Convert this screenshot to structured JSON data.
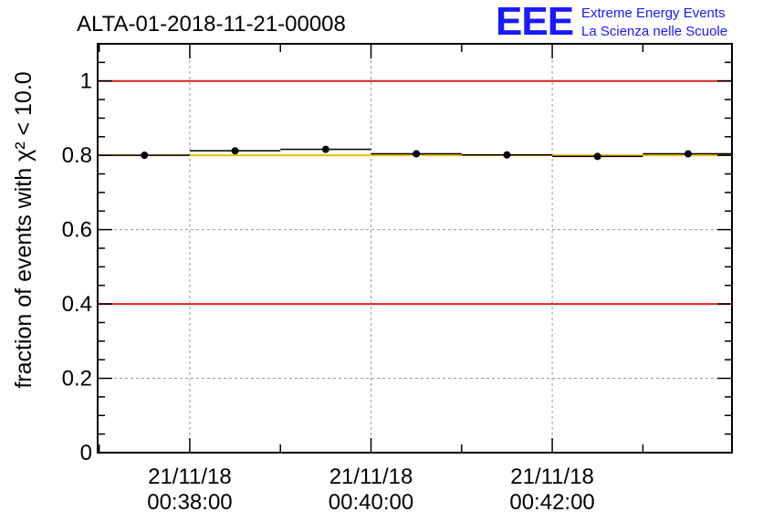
{
  "header": {
    "run_title": "ALTA-01-2018-11-21-00008",
    "logo_text": "EEE",
    "logo_line1": "Extreme Energy Events",
    "logo_line2": "La Scienza nelle Scuole"
  },
  "chart_data": {
    "type": "scatter",
    "title": "ALTA-01-2018-11-21-00008",
    "xlabel": "",
    "ylabel": "fraction of events with χ² < 10.0",
    "ylim": [
      0,
      1.1
    ],
    "xlim": [
      "2018-11-21 00:36:59",
      "2018-11-21 00:43:59"
    ],
    "grid": true,
    "y_ticks": [
      "0",
      "0.2",
      "0.4",
      "0.6",
      "0.8",
      "1"
    ],
    "x_ticks": [
      {
        "date": "21/11/18",
        "time": "00:38:00"
      },
      {
        "date": "21/11/18",
        "time": "00:40:00"
      },
      {
        "date": "21/11/18",
        "time": "00:42:00"
      }
    ],
    "reference_lines": [
      {
        "y": 1.0,
        "color": "#e02020"
      },
      {
        "y": 0.4,
        "color": "#e02020"
      },
      {
        "y": 0.8,
        "color": "#f0c000"
      }
    ],
    "series": [
      {
        "x_start": [
          "00:37:00",
          "00:38:00",
          "00:39:00",
          "00:40:00",
          "00:41:00",
          "00:42:00",
          "00:43:00"
        ],
        "x_end": [
          "00:38:00",
          "00:39:00",
          "00:40:00",
          "00:41:00",
          "00:42:00",
          "00:43:00",
          "00:44:00"
        ],
        "x_center": [
          "00:37:30",
          "00:38:30",
          "00:39:30",
          "00:40:30",
          "00:41:30",
          "00:42:30",
          "00:43:30"
        ],
        "values": [
          0.8,
          0.812,
          0.816,
          0.804,
          0.801,
          0.797,
          0.804
        ]
      }
    ],
    "colors": {
      "frame": "#000000",
      "grid": "#9a9a9a",
      "marker": "#000000",
      "logo": "#1a1aff"
    }
  }
}
